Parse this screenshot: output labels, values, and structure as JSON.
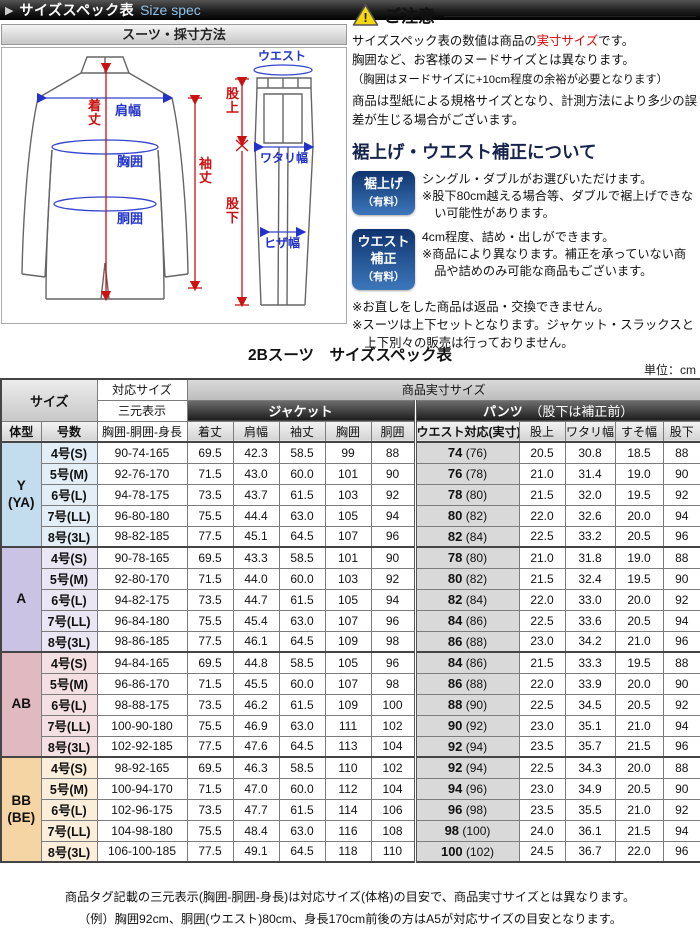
{
  "top_bar": {
    "arrow": "▶",
    "title": "サイズスペック表",
    "subtitle": "Size spec"
  },
  "measure_panel": {
    "title": "スーツ・採寸方法",
    "jacket_labels": {
      "shoulder": "肩幅",
      "length": "着丈",
      "chest": "胸囲",
      "waist": "胴囲",
      "sleeve": "袖丈"
    },
    "pants_labels": {
      "waist": "ウエスト",
      "rise": "股上",
      "thigh": "ワタリ幅",
      "knee": "ヒザ幅",
      "inseam": "股下"
    },
    "label_blue": "#2233cc",
    "label_red": "#cc1111"
  },
  "notice": {
    "icon_mark": "!",
    "title": "ご注意",
    "line1_pre": "サイズスペック表の数値は商品の",
    "line1_em": "実寸サイズ",
    "line1_post": "です。",
    "line2": "胸囲など、お客様のヌードサイズとは異なります。",
    "line3": "（胸囲はヌードサイズに+10cm程度の余裕が必要となります）",
    "line4": "商品は型紙による規格サイズとなり、計測方法により多少の誤差が生じる場合がございます。",
    "accent_color": "#dd0000"
  },
  "alteration": {
    "title": "裾上げ・ウエスト補正について",
    "items": [
      {
        "badge": [
          "裾上げ",
          "（有料）"
        ],
        "line1": "シングル・ダブルがお選びいただけます。",
        "line2": "※股下80cm越える場合等、ダブルで裾上げできない可能性があります。"
      },
      {
        "badge": [
          "ウエスト",
          "補正",
          "（有料）"
        ],
        "line1": "4cm程度、詰め・出しができます。",
        "line2": "※商品により異なります。補正を承っていない商品や詰めのみ可能な商品もございます。"
      }
    ],
    "notes": [
      "※お直しをした商品は返品・交換できません。",
      "※スーツは上下セットとなります。ジャケット・スラックスと上下別々の販売は行っておりません。"
    ],
    "badge_color_top": "#0f336e",
    "badge_color_bottom": "#3c77bb"
  },
  "table": {
    "title": "2Bスーツ　サイズスペック表",
    "unit": "単位：cm",
    "head": {
      "size": "サイズ",
      "taiou": "対応サイズ",
      "sangen": "三元表示",
      "jissun": "商品実寸サイズ",
      "jacket": "ジャケット",
      "pants_main": "パンツ",
      "pants_sub": "（股下は補正前）",
      "cols": [
        "体型",
        "号数",
        "胸囲-胴囲-身長",
        "着丈",
        "肩幅",
        "袖丈",
        "胸囲",
        "胴囲",
        "ウエスト対応(実寸)",
        "股上",
        "ワタリ幅",
        "すそ幅",
        "股下"
      ]
    },
    "groups": [
      {
        "label": [
          "Y",
          "(YA)"
        ],
        "color": "#c3dcee",
        "light": "#e3eef7",
        "rows": [
          {
            "size": "4号(S)",
            "triple": "90-74-165",
            "jacket": [
              "69.5",
              "42.3",
              "58.5",
              "99",
              "88"
            ],
            "waist": "74",
            "waist_ref": "(76)",
            "pants": [
              "20.5",
              "30.8",
              "18.5",
              "88"
            ]
          },
          {
            "size": "5号(M)",
            "triple": "92-76-170",
            "jacket": [
              "71.5",
              "43.0",
              "60.0",
              "101",
              "90"
            ],
            "waist": "76",
            "waist_ref": "(78)",
            "pants": [
              "21.0",
              "31.4",
              "19.0",
              "90"
            ]
          },
          {
            "size": "6号(L)",
            "triple": "94-78-175",
            "jacket": [
              "73.5",
              "43.7",
              "61.5",
              "103",
              "92"
            ],
            "waist": "78",
            "waist_ref": "(80)",
            "pants": [
              "21.5",
              "32.0",
              "19.5",
              "92"
            ]
          },
          {
            "size": "7号(LL)",
            "triple": "96-80-180",
            "jacket": [
              "75.5",
              "44.4",
              "63.0",
              "105",
              "94"
            ],
            "waist": "80",
            "waist_ref": "(82)",
            "pants": [
              "22.0",
              "32.6",
              "20.0",
              "94"
            ]
          },
          {
            "size": "8号(3L)",
            "triple": "98-82-185",
            "jacket": [
              "77.5",
              "45.1",
              "64.5",
              "107",
              "96"
            ],
            "waist": "82",
            "waist_ref": "(84)",
            "pants": [
              "22.5",
              "33.2",
              "20.5",
              "96"
            ]
          }
        ]
      },
      {
        "label": [
          "A"
        ],
        "color": "#cbc3e3",
        "light": "#eae6f3",
        "rows": [
          {
            "size": "4号(S)",
            "triple": "90-78-165",
            "jacket": [
              "69.5",
              "43.3",
              "58.5",
              "101",
              "90"
            ],
            "waist": "78",
            "waist_ref": "(80)",
            "pants": [
              "21.0",
              "31.8",
              "19.0",
              "88"
            ]
          },
          {
            "size": "5号(M)",
            "triple": "92-80-170",
            "jacket": [
              "71.5",
              "44.0",
              "60.0",
              "103",
              "92"
            ],
            "waist": "80",
            "waist_ref": "(82)",
            "pants": [
              "21.5",
              "32.4",
              "19.5",
              "90"
            ]
          },
          {
            "size": "6号(L)",
            "triple": "94-82-175",
            "jacket": [
              "73.5",
              "44.7",
              "61.5",
              "105",
              "94"
            ],
            "waist": "82",
            "waist_ref": "(84)",
            "pants": [
              "22.0",
              "33.0",
              "20.0",
              "92"
            ]
          },
          {
            "size": "7号(LL)",
            "triple": "96-84-180",
            "jacket": [
              "75.5",
              "45.4",
              "63.0",
              "107",
              "96"
            ],
            "waist": "84",
            "waist_ref": "(86)",
            "pants": [
              "22.5",
              "33.6",
              "20.5",
              "94"
            ]
          },
          {
            "size": "8号(3L)",
            "triple": "98-86-185",
            "jacket": [
              "77.5",
              "46.1",
              "64.5",
              "109",
              "98"
            ],
            "waist": "86",
            "waist_ref": "(88)",
            "pants": [
              "23.0",
              "34.2",
              "21.0",
              "96"
            ]
          }
        ]
      },
      {
        "label": [
          "AB"
        ],
        "color": "#e0bac0",
        "light": "#f4e0e2",
        "rows": [
          {
            "size": "4号(S)",
            "triple": "94-84-165",
            "jacket": [
              "69.5",
              "44.8",
              "58.5",
              "105",
              "96"
            ],
            "waist": "84",
            "waist_ref": "(86)",
            "pants": [
              "21.5",
              "33.3",
              "19.5",
              "88"
            ]
          },
          {
            "size": "5号(M)",
            "triple": "96-86-170",
            "jacket": [
              "71.5",
              "45.5",
              "60.0",
              "107",
              "98"
            ],
            "waist": "86",
            "waist_ref": "(88)",
            "pants": [
              "22.0",
              "33.9",
              "20.0",
              "90"
            ]
          },
          {
            "size": "6号(L)",
            "triple": "98-88-175",
            "jacket": [
              "73.5",
              "46.2",
              "61.5",
              "109",
              "100"
            ],
            "waist": "88",
            "waist_ref": "(90)",
            "pants": [
              "22.5",
              "34.5",
              "20.5",
              "92"
            ]
          },
          {
            "size": "7号(LL)",
            "triple": "100-90-180",
            "jacket": [
              "75.5",
              "46.9",
              "63.0",
              "111",
              "102"
            ],
            "waist": "90",
            "waist_ref": "(92)",
            "pants": [
              "23.0",
              "35.1",
              "21.0",
              "94"
            ]
          },
          {
            "size": "8号(3L)",
            "triple": "102-92-185",
            "jacket": [
              "77.5",
              "47.6",
              "64.5",
              "113",
              "104"
            ],
            "waist": "92",
            "waist_ref": "(94)",
            "pants": [
              "23.5",
              "35.7",
              "21.5",
              "96"
            ]
          }
        ]
      },
      {
        "label": [
          "BB",
          "(BE)"
        ],
        "color": "#f6d5a5",
        "light": "#fbeeda",
        "rows": [
          {
            "size": "4号(S)",
            "triple": "98-92-165",
            "jacket": [
              "69.5",
              "46.3",
              "58.5",
              "110",
              "102"
            ],
            "waist": "92",
            "waist_ref": "(94)",
            "pants": [
              "22.5",
              "34.3",
              "20.0",
              "88"
            ]
          },
          {
            "size": "5号(M)",
            "triple": "100-94-170",
            "jacket": [
              "71.5",
              "47.0",
              "60.0",
              "112",
              "104"
            ],
            "waist": "94",
            "waist_ref": "(96)",
            "pants": [
              "23.0",
              "34.9",
              "20.5",
              "90"
            ]
          },
          {
            "size": "6号(L)",
            "triple": "102-96-175",
            "jacket": [
              "73.5",
              "47.7",
              "61.5",
              "114",
              "106"
            ],
            "waist": "96",
            "waist_ref": "(98)",
            "pants": [
              "23.5",
              "35.5",
              "21.0",
              "92"
            ]
          },
          {
            "size": "7号(LL)",
            "triple": "104-98-180",
            "jacket": [
              "75.5",
              "48.4",
              "63.0",
              "116",
              "108"
            ],
            "waist": "98",
            "waist_ref": "(100)",
            "pants": [
              "24.0",
              "36.1",
              "21.5",
              "94"
            ]
          },
          {
            "size": "8号(3L)",
            "triple": "106-100-185",
            "jacket": [
              "77.5",
              "49.1",
              "64.5",
              "118",
              "110"
            ],
            "waist": "100",
            "waist_ref": "(102)",
            "pants": [
              "24.5",
              "36.7",
              "22.0",
              "96"
            ]
          }
        ]
      }
    ],
    "footnotes": [
      "商品タグ記載の三元表示(胸囲-胴囲-身長)は対応サイズ(体格)の目安で、商品実寸サイズとは異なります。",
      "（例）胸囲92cm、胴囲(ウエスト)80cm、身長170cm前後の方はA5が対応サイズの目安となります。"
    ]
  }
}
